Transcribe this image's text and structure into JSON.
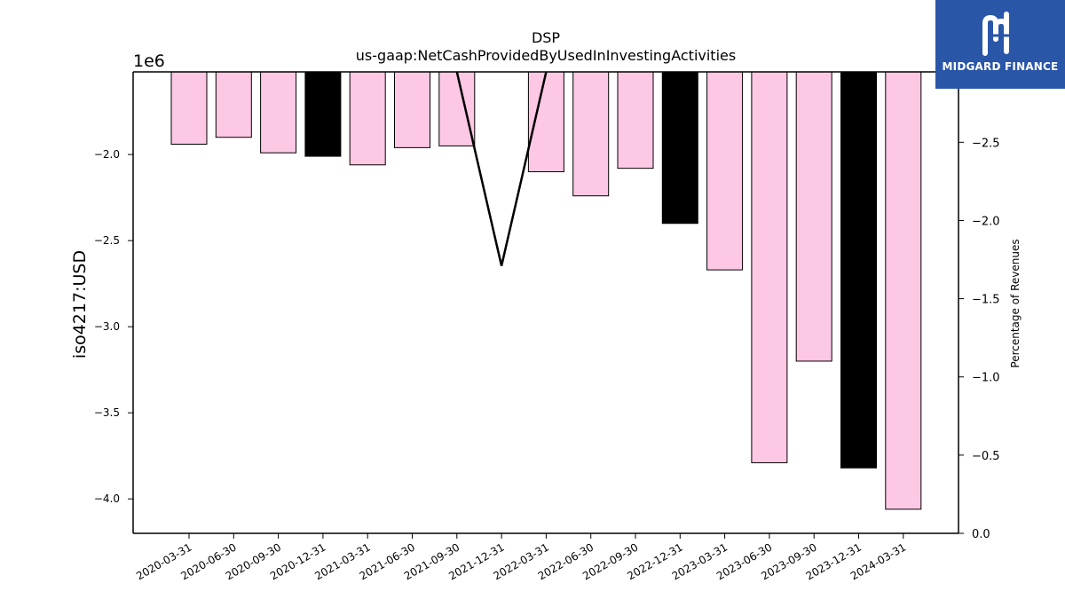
{
  "logo": {
    "text": "MIDGARD FINANCE",
    "bg": "#2a56a8"
  },
  "chart_data": {
    "type": "bar",
    "title": "DSP",
    "subtitle": "us-gaap:NetCashProvidedByUsedInInvestingActivities",
    "ylabel": "iso4217:USD",
    "y_offset_label": "1e6",
    "y2label": "Percentage of Revenues",
    "categories": [
      "2020-03-31",
      "2020-06-30",
      "2020-09-30",
      "2020-12-31",
      "2021-03-31",
      "2021-06-30",
      "2021-09-30",
      "2021-12-31",
      "2022-03-31",
      "2022-06-30",
      "2022-09-30",
      "2022-12-31",
      "2023-03-31",
      "2023-06-30",
      "2023-09-30",
      "2023-12-31",
      "2024-03-31"
    ],
    "values": [
      -1.94,
      -1.9,
      -1.99,
      -2.01,
      -2.06,
      -1.96,
      -1.95,
      null,
      -2.1,
      -2.24,
      -2.08,
      -2.4,
      -2.67,
      -3.79,
      -3.2,
      -3.82,
      -4.06
    ],
    "bar_colors": [
      "#fcc8e4",
      "#fcc8e4",
      "#fcc8e4",
      "#000000",
      "#fcc8e4",
      "#fcc8e4",
      "#fcc8e4",
      null,
      "#fcc8e4",
      "#fcc8e4",
      "#fcc8e4",
      "#000000",
      "#fcc8e4",
      "#fcc8e4",
      "#fcc8e4",
      "#000000",
      "#fcc8e4"
    ],
    "ylim": [
      -4.2,
      -1.52
    ],
    "yticks": [
      -2.0,
      -2.5,
      -3.0,
      -3.5,
      -4.0
    ],
    "ytick_labels": [
      "−2.0",
      "−2.5",
      "−3.0",
      "−3.5",
      "−4.0"
    ],
    "y2lim": [
      0.0,
      -2.95
    ],
    "y2ticks": [
      -2.5,
      -2.0,
      -1.5,
      -1.0,
      -0.5,
      0.0
    ],
    "y2tick_labels": [
      "−2.5",
      "−2.0",
      "−1.5",
      "−1.0",
      "−0.5",
      "0.0"
    ],
    "line": {
      "name": "",
      "axis": "right",
      "color": "#000000",
      "points": [
        {
          "x": "2021-09-30",
          "y": -2.95
        },
        {
          "x": "2021-12-31",
          "y": -1.71
        },
        {
          "x": "2022-03-31",
          "y": -2.95
        }
      ]
    },
    "grid": false
  }
}
